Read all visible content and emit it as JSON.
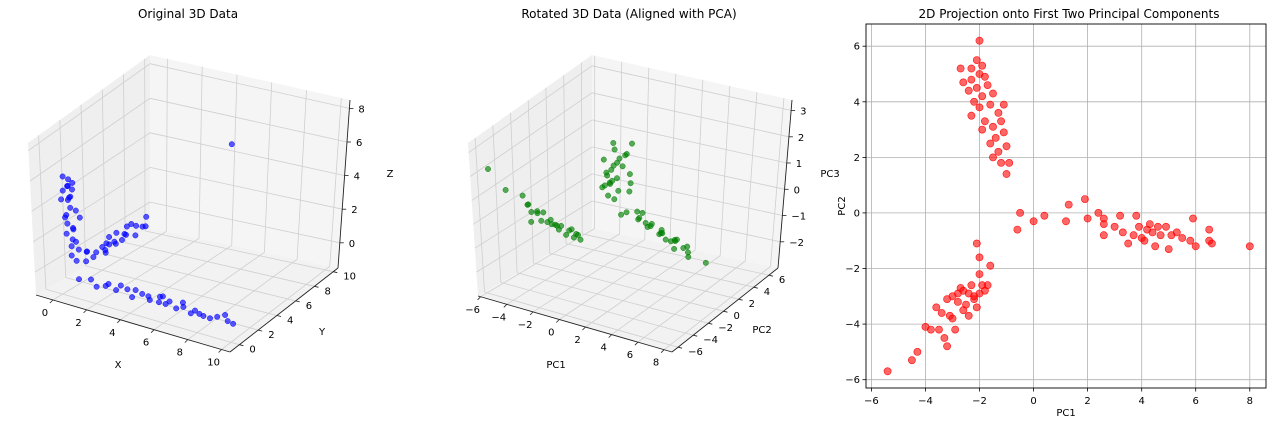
{
  "chart_data": [
    {
      "type": "scatter",
      "projection": "3d",
      "title": "Original 3D Data",
      "xlabel": "X",
      "ylabel": "Y",
      "zlabel": "Z",
      "xlim": [
        -1,
        10.5
      ],
      "ylim": [
        -1,
        10.5
      ],
      "zlim": [
        -1.5,
        8.5
      ],
      "xticks": [
        0,
        2,
        4,
        6,
        8,
        10
      ],
      "yticks": [
        0,
        2,
        4,
        6,
        8,
        10
      ],
      "zticks": [
        0,
        2,
        4,
        6,
        8
      ],
      "color": "#0000ff",
      "grid": true,
      "points": [
        [
          0.3,
          0.1,
          6.3
        ],
        [
          0.5,
          0.3,
          6.1
        ],
        [
          0.8,
          0.2,
          6.0
        ],
        [
          0.6,
          0.0,
          5.8
        ],
        [
          0.4,
          0.4,
          5.6
        ],
        [
          0.2,
          0.2,
          5.3
        ],
        [
          0.7,
          0.1,
          5.1
        ],
        [
          0.5,
          0.3,
          4.9
        ],
        [
          0.3,
          0.5,
          4.6
        ],
        [
          0.6,
          0.2,
          4.3
        ],
        [
          0.8,
          0.4,
          4.1
        ],
        [
          0.4,
          0.1,
          3.8
        ],
        [
          0.2,
          0.3,
          3.5
        ],
        [
          0.5,
          0.0,
          3.3
        ],
        [
          0.7,
          0.2,
          3.0
        ],
        [
          0.6,
          0.4,
          2.8
        ],
        [
          0.3,
          0.2,
          2.5
        ],
        [
          0.9,
          0.1,
          2.2
        ],
        [
          0.4,
          0.6,
          2.0
        ],
        [
          0.5,
          0.3,
          1.7
        ],
        [
          0.8,
          0.5,
          1.5
        ],
        [
          0.6,
          0.1,
          1.2
        ],
        [
          0.7,
          0.3,
          5.5
        ],
        [
          0.2,
          0.0,
          4.8
        ],
        [
          0.9,
          0.6,
          3.6
        ],
        [
          0.9,
          0.2,
          -0.3
        ],
        [
          1.5,
          0.4,
          -0.2
        ],
        [
          2.0,
          0.1,
          -0.4
        ],
        [
          2.6,
          0.3,
          -0.1
        ],
        [
          3.1,
          0.2,
          -0.3
        ],
        [
          3.6,
          0.5,
          -0.2
        ],
        [
          4.1,
          0.1,
          -0.4
        ],
        [
          4.6,
          0.3,
          -0.1
        ],
        [
          5.1,
          0.2,
          -0.3
        ],
        [
          5.6,
          0.4,
          0.0
        ],
        [
          6.1,
          0.1,
          -0.2
        ],
        [
          6.6,
          0.3,
          -0.4
        ],
        [
          7.1,
          0.2,
          -0.1
        ],
        [
          7.6,
          0.5,
          -0.3
        ],
        [
          8.1,
          0.1,
          -0.2
        ],
        [
          8.6,
          0.3,
          -0.4
        ],
        [
          9.1,
          0.2,
          -0.1
        ],
        [
          9.6,
          0.4,
          -0.3
        ],
        [
          10.1,
          0.1,
          -0.2
        ],
        [
          4.4,
          0.0,
          0.2
        ],
        [
          5.4,
          0.6,
          -0.5
        ],
        [
          6.4,
          0.0,
          0.1
        ],
        [
          7.4,
          0.4,
          -0.5
        ],
        [
          3.4,
          0.2,
          0.1
        ],
        [
          2.3,
          0.5,
          -0.4
        ],
        [
          5.9,
          0.2,
          0.2
        ],
        [
          6.9,
          0.5,
          0.0
        ],
        [
          8.4,
          0.0,
          -0.2
        ],
        [
          9.4,
          0.5,
          0.0
        ],
        [
          4.9,
          0.4,
          -0.2
        ],
        [
          0.2,
          1.2,
          0.3
        ],
        [
          0.4,
          1.8,
          0.1
        ],
        [
          0.1,
          2.4,
          0.4
        ],
        [
          0.3,
          3.0,
          0.2
        ],
        [
          0.5,
          3.6,
          0.0
        ],
        [
          0.2,
          4.2,
          0.3
        ],
        [
          0.4,
          4.8,
          0.1
        ],
        [
          0.1,
          5.4,
          0.5
        ],
        [
          0.3,
          6.0,
          0.2
        ],
        [
          0.5,
          6.6,
          0.0
        ],
        [
          0.2,
          7.2,
          0.3
        ],
        [
          0.4,
          7.8,
          0.1
        ],
        [
          0.1,
          8.4,
          0.4
        ],
        [
          0.3,
          2.1,
          0.6
        ],
        [
          0.5,
          3.3,
          0.5
        ],
        [
          0.2,
          4.5,
          0.6
        ],
        [
          0.4,
          5.7,
          0.4
        ],
        [
          0.1,
          6.9,
          0.5
        ],
        [
          0.3,
          3.9,
          0.0
        ],
        [
          0.6,
          5.1,
          0.3
        ],
        [
          0.2,
          6.3,
          0.6
        ],
        [
          0.4,
          7.5,
          0.2
        ],
        [
          0.3,
          2.7,
          0.0
        ],
        [
          0.5,
          4.0,
          0.4
        ],
        [
          0.2,
          5.0,
          0.1
        ],
        [
          4.5,
          10.0,
          6.0
        ]
      ]
    },
    {
      "type": "scatter",
      "projection": "3d",
      "title": "Rotated 3D Data (Aligned with PCA)",
      "xlabel": "PC1",
      "ylabel": "PC2",
      "zlabel": "PC3",
      "xlim": [
        -6.2,
        8.6
      ],
      "ylim": [
        -6.8,
        7.2
      ],
      "zlim": [
        -3.0,
        3.4
      ],
      "xticks": [
        -6,
        -4,
        -2,
        0,
        2,
        4,
        6,
        8
      ],
      "yticks": [
        -6,
        -4,
        -2,
        0,
        2,
        4,
        6
      ],
      "zticks": [
        -2,
        -1,
        0,
        1,
        2,
        3
      ],
      "ztick_labels": [
        "−2",
        "−1",
        "0",
        "1",
        "2",
        "3"
      ],
      "color": "#008000",
      "grid": true,
      "points": [
        [
          -2.0,
          6.2,
          1.4
        ],
        [
          -2.2,
          5.6,
          1.0
        ],
        [
          -1.8,
          5.2,
          1.2
        ],
        [
          -2.4,
          4.9,
          0.8
        ],
        [
          -2.0,
          4.6,
          1.1
        ],
        [
          -1.6,
          4.3,
          0.9
        ],
        [
          -2.3,
          4.0,
          0.7
        ],
        [
          -1.9,
          3.7,
          1.0
        ],
        [
          -1.5,
          3.4,
          0.6
        ],
        [
          -2.1,
          3.1,
          0.8
        ],
        [
          -1.7,
          2.8,
          0.5
        ],
        [
          -1.3,
          2.5,
          0.7
        ],
        [
          -1.9,
          2.2,
          0.4
        ],
        [
          -1.5,
          1.9,
          0.6
        ],
        [
          -1.1,
          1.6,
          0.3
        ],
        [
          -2.6,
          5.0,
          1.3
        ],
        [
          -1.4,
          4.8,
          0.5
        ],
        [
          -2.5,
          3.5,
          1.2
        ],
        [
          -1.2,
          3.0,
          0.2
        ],
        [
          -0.9,
          2.0,
          0.1
        ],
        [
          -0.8,
          3.9,
          0.4
        ],
        [
          -1.0,
          4.0,
          0.0
        ],
        [
          -2.8,
          5.2,
          1.5
        ],
        [
          -1.6,
          2.4,
          0.9
        ],
        [
          -2.0,
          3.3,
          0.3
        ],
        [
          1.0,
          -0.2,
          0.2
        ],
        [
          1.5,
          -0.3,
          0.4
        ],
        [
          2.0,
          0.4,
          0.1
        ],
        [
          2.5,
          -0.5,
          0.3
        ],
        [
          3.0,
          -0.2,
          0.0
        ],
        [
          3.5,
          -0.6,
          0.2
        ],
        [
          4.0,
          -0.4,
          -0.1
        ],
        [
          4.5,
          -0.8,
          0.1
        ],
        [
          5.0,
          -0.6,
          -0.2
        ],
        [
          5.5,
          -0.9,
          0.0
        ],
        [
          6.0,
          -0.7,
          -0.3
        ],
        [
          6.5,
          -1.0,
          -0.1
        ],
        [
          8.0,
          -1.2,
          -0.5
        ],
        [
          2.2,
          -0.1,
          0.5
        ],
        [
          3.2,
          -0.7,
          0.3
        ],
        [
          4.2,
          -0.5,
          0.0
        ],
        [
          4.8,
          -0.9,
          -0.1
        ],
        [
          5.2,
          -0.4,
          -0.2
        ],
        [
          5.8,
          -1.1,
          0.1
        ],
        [
          6.4,
          -0.8,
          -0.4
        ],
        [
          2.8,
          -0.4,
          0.6
        ],
        [
          3.8,
          -0.9,
          0.4
        ],
        [
          4.4,
          -0.7,
          0.2
        ],
        [
          5.6,
          -1.2,
          -0.3
        ],
        [
          6.6,
          -1.1,
          -0.5
        ],
        [
          -5.5,
          -5.7,
          2.2
        ],
        [
          -4.5,
          -5.3,
          1.4
        ],
        [
          -4.0,
          -4.1,
          1.0
        ],
        [
          -3.6,
          -4.2,
          0.7
        ],
        [
          -3.2,
          -4.4,
          0.5
        ],
        [
          -3.0,
          -4.8,
          0.2
        ],
        [
          -3.4,
          -3.4,
          0.3
        ],
        [
          -3.0,
          -3.6,
          0.0
        ],
        [
          -2.6,
          -3.0,
          -0.2
        ],
        [
          -2.2,
          -2.8,
          -0.4
        ],
        [
          -1.8,
          -2.6,
          -0.6
        ],
        [
          -1.6,
          -2.0,
          -0.8
        ],
        [
          -2.0,
          -1.6,
          -0.6
        ],
        [
          -2.4,
          -2.2,
          -0.4
        ],
        [
          -2.8,
          -3.2,
          -0.1
        ],
        [
          -3.2,
          -3.0,
          0.2
        ],
        [
          -2.0,
          -1.1,
          -0.9
        ],
        [
          -1.5,
          -1.4,
          -1.0
        ],
        [
          -3.8,
          -3.8,
          0.6
        ],
        [
          -2.4,
          -3.4,
          0.1
        ],
        [
          -1.8,
          -2.2,
          -0.5
        ],
        [
          -2.6,
          -2.6,
          -0.3
        ],
        [
          -3.0,
          -4.0,
          0.4
        ],
        [
          -2.2,
          -3.0,
          -0.2
        ],
        [
          -1.4,
          -1.8,
          -0.7
        ]
      ]
    },
    {
      "type": "scatter",
      "title": "2D Projection onto First Two Principal Components",
      "xlabel": "PC1",
      "ylabel": "PC2",
      "xlim": [
        -6.2,
        8.6
      ],
      "ylim": [
        -6.3,
        6.8
      ],
      "xticks": [
        -6,
        -4,
        -2,
        0,
        2,
        4,
        6,
        8
      ],
      "yticks": [
        -6,
        -4,
        -2,
        0,
        2,
        4,
        6
      ],
      "xtick_labels": [
        "−6",
        "−4",
        "−2",
        "0",
        "2",
        "4",
        "6",
        "8"
      ],
      "ytick_labels": [
        "−6",
        "−4",
        "−2",
        "0",
        "2",
        "4",
        "6"
      ],
      "color": "#ff0000",
      "grid": true,
      "points": [
        [
          -2.0,
          6.2
        ],
        [
          -2.1,
          5.5
        ],
        [
          -1.9,
          5.3
        ],
        [
          -2.3,
          5.2
        ],
        [
          -2.7,
          5.2
        ],
        [
          -2.0,
          5.0
        ],
        [
          -1.8,
          4.9
        ],
        [
          -2.3,
          4.8
        ],
        [
          -2.6,
          4.7
        ],
        [
          -1.7,
          4.6
        ],
        [
          -2.1,
          4.5
        ],
        [
          -2.4,
          4.4
        ],
        [
          -1.5,
          4.3
        ],
        [
          -1.9,
          4.2
        ],
        [
          -2.2,
          4.0
        ],
        [
          -1.6,
          3.9
        ],
        [
          -1.1,
          3.9
        ],
        [
          -2.0,
          3.8
        ],
        [
          -1.3,
          3.6
        ],
        [
          -2.3,
          3.5
        ],
        [
          -1.8,
          3.3
        ],
        [
          -1.2,
          3.3
        ],
        [
          -1.5,
          3.1
        ],
        [
          -1.9,
          3.0
        ],
        [
          -1.1,
          2.9
        ],
        [
          -1.4,
          2.7
        ],
        [
          -1.6,
          2.5
        ],
        [
          -1.0,
          2.4
        ],
        [
          -1.3,
          2.2
        ],
        [
          -1.5,
          2.0
        ],
        [
          -1.2,
          1.8
        ],
        [
          -0.9,
          1.8
        ],
        [
          -1.0,
          1.4
        ],
        [
          -0.5,
          0.0
        ],
        [
          -0.6,
          -0.6
        ],
        [
          0.0,
          -0.3
        ],
        [
          0.4,
          -0.1
        ],
        [
          1.2,
          -0.3
        ],
        [
          1.3,
          0.3
        ],
        [
          1.9,
          0.5
        ],
        [
          2.0,
          -0.2
        ],
        [
          2.4,
          0.0
        ],
        [
          2.6,
          -0.2
        ],
        [
          2.6,
          -0.4
        ],
        [
          2.6,
          -0.8
        ],
        [
          3.0,
          -0.5
        ],
        [
          3.2,
          -0.1
        ],
        [
          3.3,
          -0.7
        ],
        [
          3.5,
          -1.1
        ],
        [
          3.7,
          -0.8
        ],
        [
          3.8,
          -0.1
        ],
        [
          3.9,
          -0.5
        ],
        [
          4.0,
          -0.9
        ],
        [
          4.1,
          -1.0
        ],
        [
          4.2,
          -0.6
        ],
        [
          4.3,
          -0.4
        ],
        [
          4.4,
          -0.7
        ],
        [
          4.5,
          -1.2
        ],
        [
          4.6,
          -0.5
        ],
        [
          4.7,
          -0.8
        ],
        [
          4.9,
          -0.5
        ],
        [
          5.0,
          -1.3
        ],
        [
          5.1,
          -0.8
        ],
        [
          5.3,
          -0.7
        ],
        [
          5.5,
          -0.9
        ],
        [
          5.8,
          -1.0
        ],
        [
          5.9,
          -0.2
        ],
        [
          6.0,
          -1.2
        ],
        [
          6.5,
          -0.6
        ],
        [
          6.5,
          -1.0
        ],
        [
          6.6,
          -1.1
        ],
        [
          8.0,
          -1.2
        ],
        [
          -5.4,
          -5.7
        ],
        [
          -4.5,
          -5.3
        ],
        [
          -4.3,
          -5.0
        ],
        [
          -4.0,
          -4.1
        ],
        [
          -3.8,
          -4.2
        ],
        [
          -3.5,
          -4.2
        ],
        [
          -3.3,
          -4.5
        ],
        [
          -3.2,
          -4.8
        ],
        [
          -3.6,
          -3.4
        ],
        [
          -3.1,
          -3.7
        ],
        [
          -3.0,
          -3.8
        ],
        [
          -2.9,
          -4.2
        ],
        [
          -3.2,
          -3.1
        ],
        [
          -3.0,
          -3.0
        ],
        [
          -2.8,
          -3.2
        ],
        [
          -2.6,
          -2.8
        ],
        [
          -2.4,
          -2.9
        ],
        [
          -2.5,
          -3.3
        ],
        [
          -2.2,
          -3.0
        ],
        [
          -2.1,
          -3.4
        ],
        [
          -2.0,
          -2.9
        ],
        [
          -1.8,
          -2.8
        ],
        [
          -1.7,
          -2.6
        ],
        [
          -2.0,
          -2.2
        ],
        [
          -1.6,
          -1.9
        ],
        [
          -2.0,
          -1.6
        ],
        [
          -2.1,
          -1.1
        ],
        [
          -2.3,
          -2.6
        ],
        [
          -2.7,
          -2.7
        ],
        [
          -2.4,
          -3.7
        ],
        [
          -3.4,
          -3.6
        ],
        [
          -2.6,
          -3.5
        ],
        [
          -1.9,
          -2.6
        ],
        [
          -2.8,
          -2.9
        ],
        [
          -2.2,
          -3.1
        ]
      ]
    }
  ]
}
